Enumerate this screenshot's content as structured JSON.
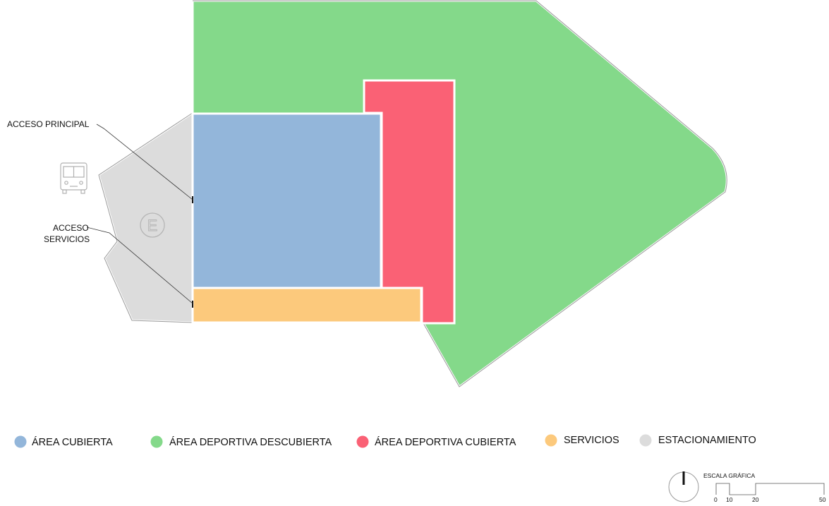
{
  "colors": {
    "area_cubierta": "#93b6da",
    "area_deportiva_descubierta": "#84d98a",
    "area_deportiva_cubierta": "#fa6175",
    "servicios": "#fcc97c",
    "estacionamiento": "#dcdcdc"
  },
  "annotations": {
    "acceso_principal": "ACCESO PRINCIPAL",
    "acceso_servicios_line1": "ACCESO",
    "acceso_servicios_line2": "SERVICIOS",
    "parking_symbol": "E"
  },
  "icons": {
    "bus": "bus-icon",
    "parking": "parking-icon",
    "north": "north-arrow-icon"
  },
  "legend": {
    "items": [
      {
        "key": "area_cubierta",
        "label": "ÁREA CUBIERTA",
        "color": "#93b6da"
      },
      {
        "key": "area_deportiva_descubierta",
        "label": "ÁREA DEPORTIVA DESCUBIERTA",
        "color": "#84d98a"
      },
      {
        "key": "area_deportiva_cubierta",
        "label": "ÁREA DEPORTIVA CUBIERTA",
        "color": "#fa6175"
      },
      {
        "key": "servicios",
        "label": "SERVICIOS",
        "color": "#fcc97c"
      },
      {
        "key": "estacionamiento",
        "label": "ESTACIONAMIENTO",
        "color": "#dcdcdc"
      }
    ]
  },
  "scale_bar": {
    "title": "ESCALA GRÁFICA",
    "ticks": [
      "0",
      "10",
      "20",
      "50"
    ]
  }
}
